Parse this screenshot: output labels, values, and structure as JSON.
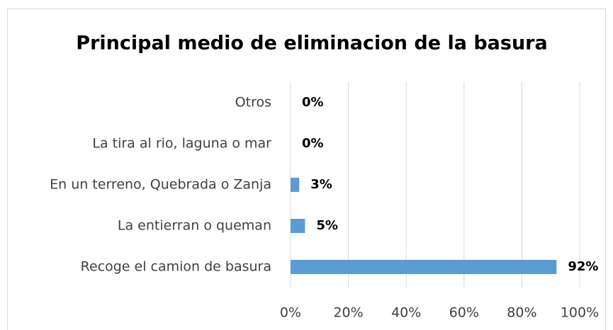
{
  "chart_data": {
    "type": "bar",
    "orientation": "horizontal",
    "title": "Principal medio de eliminacion de la basura",
    "categories": [
      "Otros",
      "La tira al rio, laguna o mar",
      "En un terreno, Quebrada o Zanja",
      "La entierran o queman",
      "Recoge el camion de basura"
    ],
    "values": [
      0,
      0,
      3,
      5,
      92
    ],
    "value_labels": [
      "0%",
      "0%",
      "3%",
      "5%",
      "92%"
    ],
    "color": "#5b9bd5",
    "xlim": [
      0,
      100
    ],
    "xticks": [
      {
        "value": 0,
        "label": "0%"
      },
      {
        "value": 20,
        "label": "20%"
      },
      {
        "value": 40,
        "label": "40%"
      },
      {
        "value": 60,
        "label": "60%"
      },
      {
        "value": 80,
        "label": "80%"
      },
      {
        "value": 100,
        "label": "100%"
      }
    ],
    "grid": true
  }
}
